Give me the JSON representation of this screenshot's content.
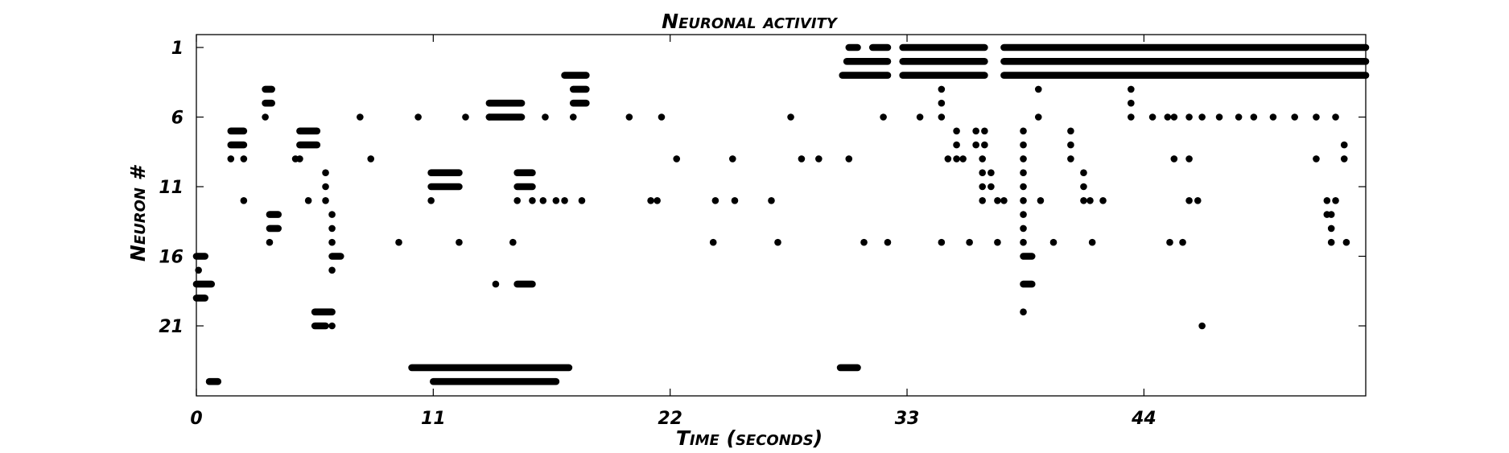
{
  "chart_data": {
    "type": "scatter",
    "title": "Neuronal activity",
    "xlabel": "Time (seconds)",
    "ylabel": "Neuron #",
    "xlim": [
      0,
      54.3
    ],
    "ylim": [
      1,
      26
    ],
    "y_inverted": true,
    "xticks": [
      0,
      11,
      22,
      33,
      44
    ],
    "yticks": [
      1,
      6,
      11,
      16,
      21
    ],
    "grid": false,
    "marker_color": "#000000",
    "raster": [
      {
        "neuron": 1,
        "segments": [
          [
            30.3,
            30.7
          ],
          [
            31.4,
            32.1
          ],
          [
            32.8,
            36.6
          ],
          [
            37.5,
            54.3
          ]
        ]
      },
      {
        "neuron": 2,
        "segments": [
          [
            30.2,
            32.1
          ],
          [
            32.8,
            36.6
          ],
          [
            37.5,
            54.3
          ]
        ]
      },
      {
        "neuron": 3,
        "segments": [
          [
            17.1,
            18.1
          ],
          [
            30.0,
            32.1
          ],
          [
            32.8,
            36.6
          ],
          [
            37.5,
            54.3
          ]
        ]
      },
      {
        "neuron": 4,
        "segments": [
          [
            3.2,
            3.5
          ],
          [
            17.5,
            18.1
          ]
        ],
        "points": [
          34.6,
          39.1,
          43.4
        ]
      },
      {
        "neuron": 5,
        "segments": [
          [
            3.2,
            3.5
          ],
          [
            13.6,
            15.1
          ],
          [
            17.5,
            18.1
          ]
        ],
        "points": [
          34.6,
          43.4
        ]
      },
      {
        "neuron": 6,
        "segments": [
          [
            13.6,
            15.1
          ]
        ],
        "points": [
          3.2,
          7.6,
          10.3,
          12.5,
          13.6,
          16.2,
          17.5,
          20.1,
          21.6,
          27.6,
          31.9,
          33.6,
          34.6,
          39.1,
          43.4,
          44.4,
          45.1,
          45.4,
          46.1,
          46.7,
          47.5,
          48.4,
          49.1,
          50.0,
          51.0,
          52.0,
          52.9
        ]
      },
      {
        "neuron": 7,
        "segments": [
          [
            1.6,
            2.2
          ],
          [
            4.8,
            5.6
          ]
        ],
        "points": [
          35.3,
          36.2,
          36.6,
          38.4,
          40.6
        ]
      },
      {
        "neuron": 8,
        "segments": [
          [
            1.6,
            2.2
          ],
          [
            4.8,
            5.6
          ]
        ],
        "points": [
          35.3,
          36.2,
          36.6,
          38.4,
          40.6,
          53.3
        ]
      },
      {
        "neuron": 9,
        "points": [
          1.6,
          2.2,
          4.6,
          4.8,
          8.1,
          22.3,
          24.9,
          28.1,
          28.9,
          30.3,
          34.9,
          35.3,
          35.6,
          36.5,
          38.4,
          40.6,
          45.4,
          46.1,
          52.0,
          53.3
        ]
      },
      {
        "neuron": 10,
        "segments": [
          [
            10.9,
            12.2
          ],
          [
            14.9,
            15.6
          ]
        ],
        "points": [
          6.0,
          36.5,
          36.9,
          38.4,
          41.2
        ]
      },
      {
        "neuron": 11,
        "segments": [
          [
            10.9,
            12.2
          ],
          [
            14.9,
            15.6
          ]
        ],
        "points": [
          6.0,
          36.5,
          36.9,
          38.4,
          41.2
        ]
      },
      {
        "neuron": 12,
        "points": [
          2.2,
          5.2,
          6.0,
          10.9,
          14.9,
          15.6,
          16.1,
          16.7,
          17.1,
          17.9,
          21.1,
          21.4,
          24.1,
          25.0,
          26.7,
          36.5,
          37.2,
          37.5,
          38.4,
          39.2,
          41.2,
          41.5,
          42.1,
          46.1,
          46.5,
          52.5,
          52.9
        ]
      },
      {
        "neuron": 13,
        "segments": [
          [
            3.4,
            3.8
          ]
        ],
        "points": [
          6.3,
          38.4,
          52.5,
          52.7
        ]
      },
      {
        "neuron": 14,
        "segments": [
          [
            3.4,
            3.8
          ]
        ],
        "points": [
          6.3,
          38.4,
          52.7
        ]
      },
      {
        "neuron": 15,
        "points": [
          3.4,
          6.3,
          9.4,
          12.2,
          14.7,
          24.0,
          27.0,
          31.0,
          32.1,
          34.6,
          35.9,
          37.2,
          38.4,
          39.8,
          41.6,
          45.2,
          45.8,
          52.7,
          53.4
        ]
      },
      {
        "neuron": 16,
        "segments": [
          [
            0.0,
            0.4
          ],
          [
            6.3,
            6.7
          ],
          [
            38.4,
            38.8
          ]
        ]
      },
      {
        "neuron": 17,
        "points": [
          0.1,
          6.3
        ]
      },
      {
        "neuron": 18,
        "segments": [
          [
            0.0,
            0.7
          ],
          [
            14.9,
            15.6
          ],
          [
            38.4,
            38.8
          ]
        ],
        "points": [
          13.9
        ]
      },
      {
        "neuron": 19,
        "segments": [
          [
            0.0,
            0.4
          ]
        ]
      },
      {
        "neuron": 20,
        "segments": [
          [
            5.5,
            6.3
          ]
        ],
        "points": [
          38.4
        ]
      },
      {
        "neuron": 21,
        "segments": [
          [
            5.5,
            6.0
          ]
        ],
        "points": [
          6.3,
          46.7
        ]
      },
      {
        "neuron": 24,
        "segments": [
          [
            10.0,
            17.3
          ],
          [
            29.9,
            30.7
          ]
        ]
      },
      {
        "neuron": 25,
        "segments": [
          [
            0.6,
            1.0
          ],
          [
            11.0,
            16.7
          ]
        ]
      }
    ]
  }
}
